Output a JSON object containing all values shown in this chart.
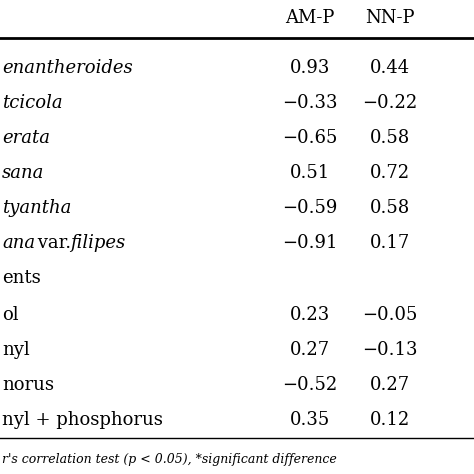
{
  "col_headers": [
    "AM-P",
    "NN-P"
  ],
  "values": [
    [
      0.93,
      0.44
    ],
    [
      -0.33,
      -0.22
    ],
    [
      -0.65,
      0.58
    ],
    [
      0.51,
      0.72
    ],
    [
      -0.59,
      0.58
    ],
    [
      -0.91,
      0.17
    ],
    [
      null,
      null
    ],
    [
      0.23,
      -0.05
    ],
    [
      0.27,
      -0.13
    ],
    [
      -0.52,
      0.27
    ],
    [
      0.35,
      0.12
    ]
  ],
  "row_labels": [
    "enantheroides",
    "tcicola",
    "erata",
    "sana",
    "tyantha",
    "ana var. filipes",
    "ents",
    "ol",
    "nyl",
    "norus",
    "nyl + phosphorus"
  ],
  "italic_rows": [
    0,
    1,
    2,
    3,
    4,
    5
  ],
  "section_rows": [
    6
  ],
  "footnote": "r's correlation test (p < 0.05), *significant difference",
  "bg_color": "#ffffff",
  "text_color": "#000000",
  "font_size": 13,
  "header_font_size": 13
}
